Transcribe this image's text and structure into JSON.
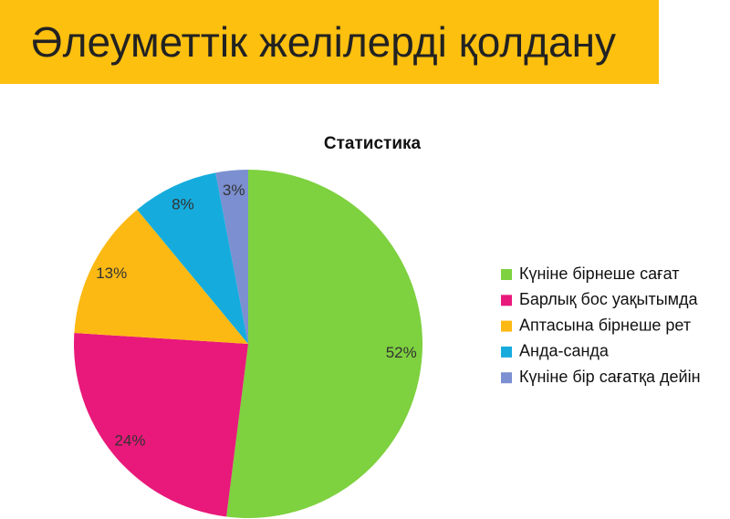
{
  "header": {
    "title": "Әлеуметтік желілерді қолдану"
  },
  "chart_data": {
    "type": "pie",
    "title": "Статистика",
    "categories": [
      "Күніне бірнеше сағат",
      "Барлық бос уақытымда",
      "Аптасына бірнеше рет",
      "Анда-санда",
      "Күніне бір сағатқа дейін"
    ],
    "values": [
      52,
      24,
      13,
      8,
      3
    ],
    "value_labels": [
      "52%",
      "24%",
      "13%",
      "8%",
      "3%"
    ],
    "colors": [
      "#7ed13f",
      "#e8197a",
      "#fdb913",
      "#15acdd",
      "#7b8fd1"
    ],
    "legend": "right"
  }
}
